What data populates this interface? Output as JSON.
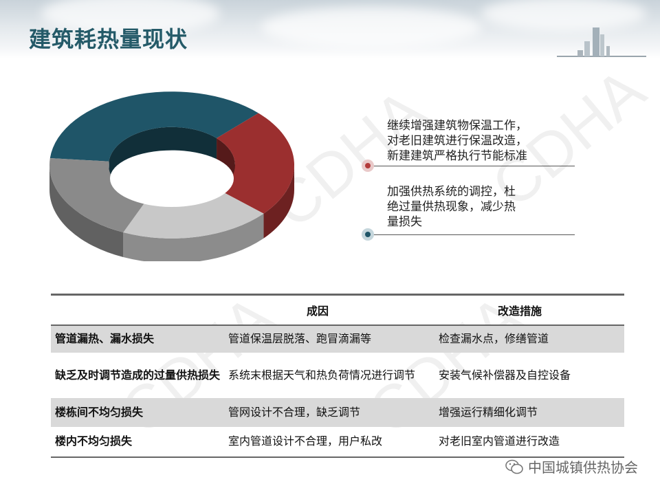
{
  "header": {
    "title": "建筑耗热量现状"
  },
  "watermark": "CDHA",
  "donut": {
    "segments": [
      {
        "color": "#1f5568",
        "fraction": 0.36
      },
      {
        "color": "#9b2f2f",
        "fraction": 0.24
      },
      {
        "color": "#c8c8c8",
        "fraction": 0.2
      },
      {
        "color": "#8a8a8a",
        "fraction": 0.2
      }
    ]
  },
  "notes": [
    {
      "lines": [
        "继续增强建筑物保温工作，",
        "对老旧建筑进行保温改造，",
        "新建建筑严格执行节能标准"
      ],
      "color": "#b33a3a"
    },
    {
      "lines": [
        "加强供热系统的调控，杜",
        "绝过量供热现象，减少热",
        "量损失"
      ],
      "color": "#1f5568"
    }
  ],
  "table": {
    "headers": [
      "",
      "成因",
      "改造措施"
    ],
    "rows": [
      [
        "管道漏热、漏水损失",
        "管道保温层脱落、跑冒滴漏等",
        "检查漏水点，修缮管道"
      ],
      [
        "缺乏及时调节造成的过量供热损失",
        "系统末根据天气和热负荷情况进行调节",
        "安装气候补偿器及自控设备"
      ],
      [
        "楼栋间不均匀损失",
        "管网设计不合理，缺乏调节",
        "增强运行精细化调节"
      ],
      [
        "楼内不均匀损失",
        "室内管道设计不合理，用户私改",
        "对老旧室内管道进行改造"
      ]
    ]
  },
  "footer": {
    "text": "中国城镇供热协会",
    "icon": "wechat-icon"
  }
}
